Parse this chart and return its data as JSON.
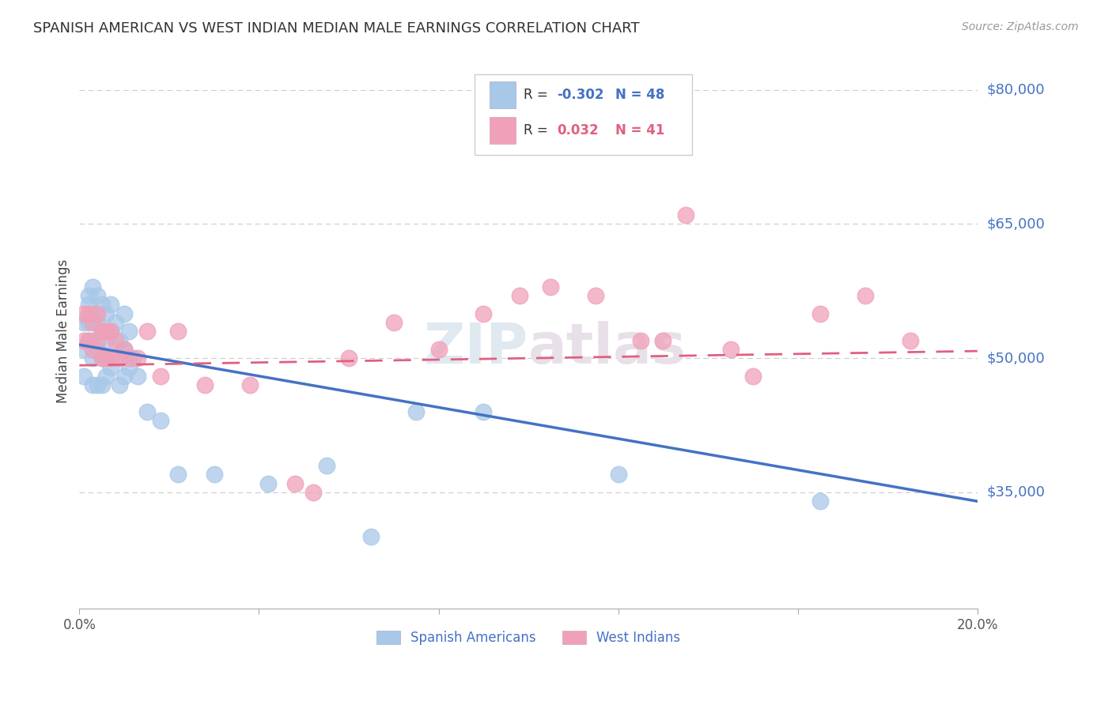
{
  "title": "SPANISH AMERICAN VS WEST INDIAN MEDIAN MALE EARNINGS CORRELATION CHART",
  "source": "Source: ZipAtlas.com",
  "ylabel": "Median Male Earnings",
  "y_ticks": [
    35000,
    50000,
    65000,
    80000
  ],
  "y_tick_labels": [
    "$35,000",
    "$50,000",
    "$65,000",
    "$80,000"
  ],
  "xlim": [
    0.0,
    0.2
  ],
  "ylim": [
    22000,
    84000
  ],
  "blue_R": "-0.302",
  "blue_N": "48",
  "pink_R": "0.032",
  "pink_N": "41",
  "blue_color": "#a8c8e8",
  "pink_color": "#f0a0b8",
  "blue_line_color": "#4472c4",
  "pink_line_color": "#e06080",
  "blue_label": "Spanish Americans",
  "pink_label": "West Indians",
  "blue_x": [
    0.001,
    0.001,
    0.001,
    0.002,
    0.002,
    0.002,
    0.002,
    0.003,
    0.003,
    0.003,
    0.003,
    0.003,
    0.004,
    0.004,
    0.004,
    0.004,
    0.005,
    0.005,
    0.005,
    0.005,
    0.006,
    0.006,
    0.006,
    0.007,
    0.007,
    0.007,
    0.008,
    0.008,
    0.009,
    0.009,
    0.01,
    0.01,
    0.01,
    0.011,
    0.011,
    0.012,
    0.013,
    0.015,
    0.018,
    0.022,
    0.03,
    0.042,
    0.055,
    0.065,
    0.075,
    0.09,
    0.12,
    0.165
  ],
  "blue_y": [
    54000,
    51000,
    48000,
    57000,
    56000,
    54000,
    52000,
    58000,
    55000,
    52000,
    50000,
    47000,
    57000,
    54000,
    51000,
    47000,
    56000,
    53000,
    50000,
    47000,
    55000,
    52000,
    48000,
    56000,
    53000,
    49000,
    54000,
    50000,
    52000,
    47000,
    55000,
    51000,
    48000,
    53000,
    49000,
    50000,
    48000,
    44000,
    43000,
    37000,
    37000,
    36000,
    38000,
    30000,
    44000,
    44000,
    37000,
    34000
  ],
  "pink_x": [
    0.001,
    0.001,
    0.002,
    0.002,
    0.003,
    0.003,
    0.004,
    0.004,
    0.005,
    0.005,
    0.006,
    0.006,
    0.007,
    0.007,
    0.008,
    0.009,
    0.01,
    0.011,
    0.013,
    0.015,
    0.018,
    0.022,
    0.028,
    0.038,
    0.048,
    0.052,
    0.06,
    0.07,
    0.08,
    0.09,
    0.098,
    0.105,
    0.115,
    0.125,
    0.13,
    0.135,
    0.145,
    0.15,
    0.165,
    0.175,
    0.185
  ],
  "pink_y": [
    55000,
    52000,
    55000,
    52000,
    54000,
    51000,
    55000,
    52000,
    53000,
    50000,
    53000,
    50000,
    53000,
    50000,
    52000,
    50000,
    51000,
    50000,
    50000,
    53000,
    48000,
    53000,
    47000,
    47000,
    36000,
    35000,
    50000,
    54000,
    51000,
    55000,
    57000,
    58000,
    57000,
    52000,
    52000,
    66000,
    51000,
    48000,
    55000,
    57000,
    52000
  ]
}
